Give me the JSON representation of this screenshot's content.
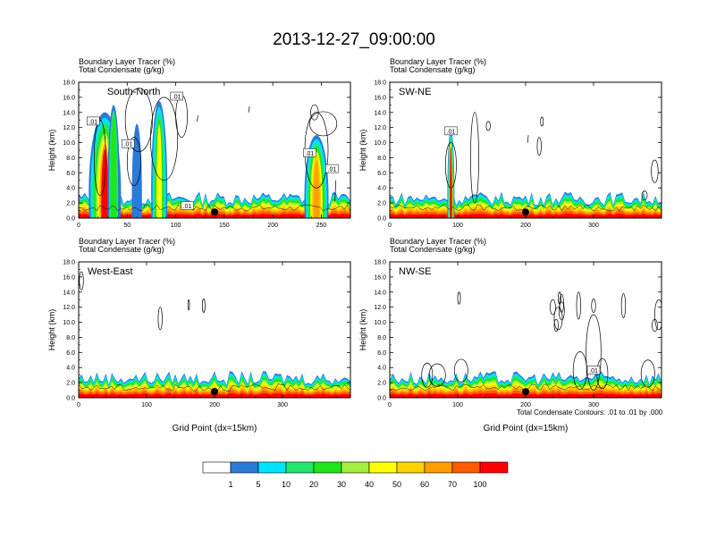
{
  "title": "2013-12-27_09:00:00",
  "colorbar": {
    "colors": [
      "#ffffff",
      "#2b7bd8",
      "#00e5ff",
      "#22e66e",
      "#1ee61a",
      "#a4f03c",
      "#ffff00",
      "#ffd200",
      "#ffa000",
      "#ff5a00",
      "#ff0000"
    ],
    "labels": [
      "1",
      "5",
      "10",
      "20",
      "30",
      "40",
      "50",
      "60",
      "70",
      "100"
    ]
  },
  "contour_note": "Total Condensate Contours: .01 to .01 by .000",
  "chart_data": [
    {
      "type": "heatmap",
      "panel": "top-left",
      "title_lines": [
        "Boundary Layer Tracer   (%)",
        "Total Condensate   (g/kg)"
      ],
      "inner_label": "South-North",
      "ylabel": "Height (km)",
      "xlabel": "",
      "xlim": [
        0,
        280
      ],
      "ylim": [
        0,
        18
      ],
      "x_ticks": [
        "0",
        "50",
        "100",
        "150",
        "200",
        "250"
      ],
      "y_ticks": [
        "0.0",
        "2.0",
        "4.0",
        "6.0",
        "8.0",
        "10.0",
        "12.0",
        "14.0",
        "16.0",
        "18.0"
      ],
      "contour_labels": [
        ".01",
        ".01",
        ".01",
        ".01",
        ".01",
        ".01"
      ],
      "marker_x": 140
    },
    {
      "type": "heatmap",
      "panel": "top-right",
      "title_lines": [
        "Boundary Layer Tracer   (%)",
        "Total Condensate   (g/kg)"
      ],
      "inner_label": "SW-NE",
      "ylabel": "Height (km)",
      "xlabel": "",
      "xlim": [
        0,
        400
      ],
      "ylim": [
        0,
        18
      ],
      "x_ticks": [
        "0",
        "100",
        "200",
        "300"
      ],
      "y_ticks": [
        "0.0",
        "2.0",
        "4.0",
        "6.0",
        "8.0",
        "10.0",
        "12.0",
        "14.0",
        "16.0",
        "18.0"
      ],
      "contour_labels": [
        ".01"
      ],
      "marker_x": 200
    },
    {
      "type": "heatmap",
      "panel": "bottom-left",
      "title_lines": [
        "Boundary Layer Tracer   (%)",
        "Total Condensate   (g/kg)"
      ],
      "inner_label": "West-East",
      "ylabel": "Height (km)",
      "xlabel": "Grid Point (dx=15km)",
      "xlim": [
        0,
        400
      ],
      "ylim": [
        0,
        18
      ],
      "x_ticks": [
        "0",
        "100",
        "200",
        "300"
      ],
      "y_ticks": [
        "0.0",
        "2.0",
        "4.0",
        "6.0",
        "8.0",
        "10.0",
        "12.0",
        "14.0",
        "16.0",
        "18.0"
      ],
      "contour_labels": [],
      "marker_x": 200
    },
    {
      "type": "heatmap",
      "panel": "bottom-right",
      "title_lines": [
        "Boundary Layer Tracer   (%)",
        "Total Condensate   (g/kg)"
      ],
      "inner_label": "NW-SE",
      "ylabel": "Height (km)",
      "xlabel": "Grid Point (dx=15km)",
      "xlim": [
        0,
        400
      ],
      "ylim": [
        0,
        18
      ],
      "x_ticks": [
        "0",
        "100",
        "200",
        "300"
      ],
      "y_ticks": [
        "0.0",
        "2.0",
        "4.0",
        "6.0",
        "8.0",
        "10.0",
        "12.0",
        "14.0",
        "16.0",
        "18.0"
      ],
      "contour_labels": [
        ".01"
      ],
      "marker_x": 200
    }
  ]
}
